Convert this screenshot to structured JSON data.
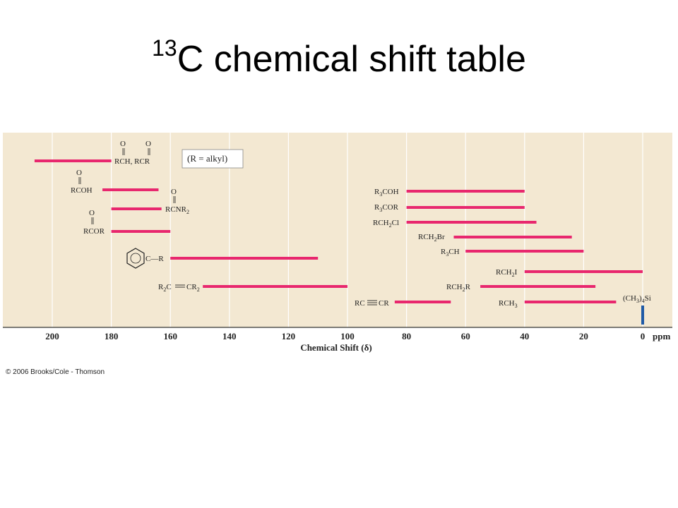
{
  "slide": {
    "title_sup": "13",
    "title_rest": "C chemical shift table",
    "copyright": "© 2006 Brooks/Cole - Thomson"
  },
  "colors": {
    "panel": "#f3e8d2",
    "gridline": "#ffffff",
    "bar": "#e8276e",
    "reference_bar": "#1f5aa6",
    "axis": "#333333"
  },
  "chart_data": {
    "type": "range-bar",
    "xlabel": "Chemical Shift (δ)",
    "unit": "ppm",
    "xlim": [
      210,
      0
    ],
    "x_reversed": true,
    "ticks": [
      200,
      180,
      160,
      140,
      120,
      100,
      80,
      60,
      40,
      20,
      0
    ],
    "grid": true,
    "annotation": "(R = alkyl)",
    "series": [
      {
        "label": "RCH, RCR",
        "from": 206,
        "to": 180
      },
      {
        "label": "RCOH",
        "from": 183,
        "to": 164
      },
      {
        "label": "RCNR2",
        "from": 180,
        "to": 163
      },
      {
        "label": "RCOR",
        "from": 180,
        "to": 160
      },
      {
        "label": "C—R",
        "from": 160,
        "to": 110
      },
      {
        "label": "R2C══CR2",
        "from": 149,
        "to": 100
      },
      {
        "label": "R3COH",
        "from": 80,
        "to": 40
      },
      {
        "label": "R3COR",
        "from": 80,
        "to": 40
      },
      {
        "label": "RCH2Cl",
        "from": 80,
        "to": 36
      },
      {
        "label": "RCH2Br",
        "from": 64,
        "to": 24
      },
      {
        "label": "R3CH",
        "from": 60,
        "to": 20
      },
      {
        "label": "RCH2I",
        "from": 40,
        "to": 0
      },
      {
        "label": "RCH2R",
        "from": 55,
        "to": 16
      },
      {
        "label": "RC≡≡CR",
        "from": 84,
        "to": 65
      },
      {
        "label": "RCH3",
        "from": 40,
        "to": 9
      },
      {
        "label": "(CH3)4Si",
        "from": 0,
        "to": 0
      }
    ]
  }
}
